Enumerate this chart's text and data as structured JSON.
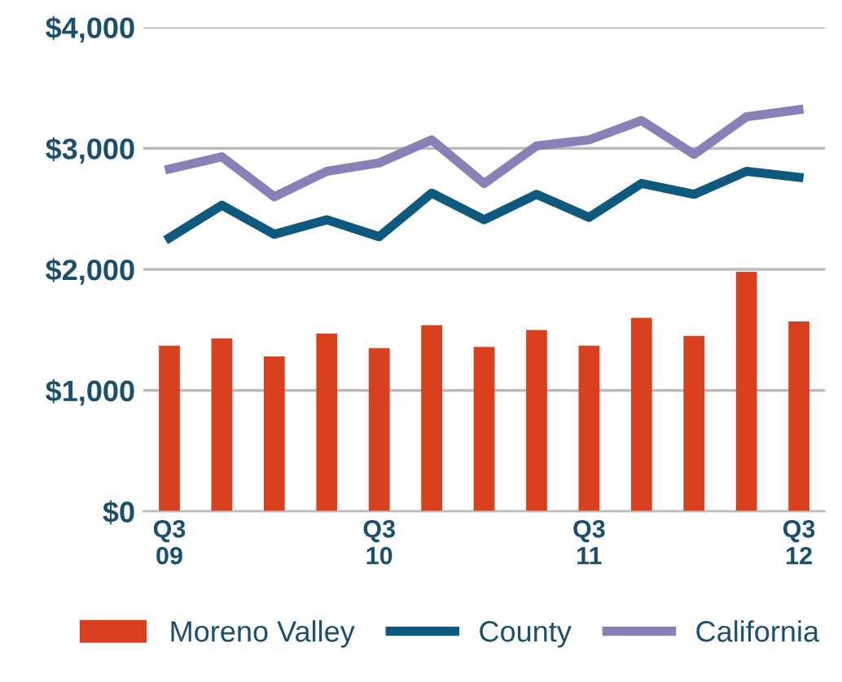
{
  "chart_data": {
    "type": "bar",
    "categories": [
      "Q3\n09",
      null,
      null,
      null,
      "Q3\n10",
      null,
      null,
      null,
      "Q3\n11",
      null,
      null,
      null,
      "Q3\n12"
    ],
    "series": [
      {
        "name": "Moreno Valley",
        "color": "#d9411e",
        "values": [
          1370,
          1430,
          1280,
          1470,
          1350,
          1540,
          1360,
          1500,
          1370,
          1600,
          1450,
          1980,
          1570
        ]
      },
      {
        "name": "County",
        "type": "line",
        "color": "#0e5a7e",
        "values": [
          2260,
          2530,
          2290,
          2410,
          2270,
          2630,
          2410,
          2620,
          2430,
          2710,
          2620,
          2810,
          2760
        ]
      },
      {
        "name": "California",
        "type": "line",
        "color": "#8a80b8",
        "values": [
          2830,
          2930,
          2600,
          2810,
          2880,
          3070,
          2710,
          3020,
          3070,
          3230,
          2950,
          3260,
          3320
        ]
      }
    ],
    "ylim": [
      0,
      4000
    ],
    "yticks": [
      {
        "value": 0,
        "label": "$0"
      },
      {
        "value": 1000,
        "label": "$1,000"
      },
      {
        "value": 2000,
        "label": "$2,000"
      },
      {
        "value": 3000,
        "label": "$3,000"
      },
      {
        "value": 4000,
        "label": "$4,000"
      }
    ],
    "grid": "y",
    "legend": "bottom",
    "marker": "none",
    "line_style": "solid"
  }
}
